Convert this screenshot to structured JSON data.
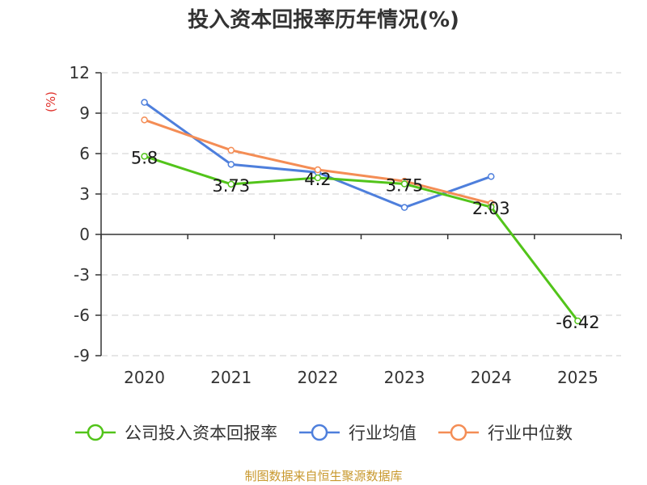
{
  "chart_data": {
    "type": "line",
    "title": "投入资本回报率历年情况(%)",
    "ylabel": "(%)",
    "categories": [
      "2020",
      "2021",
      "2022",
      "2023",
      "2024",
      "2025"
    ],
    "ylim": [
      -9,
      12
    ],
    "yticks": [
      12,
      9,
      6,
      3,
      0,
      -3,
      -6,
      -9
    ],
    "grid": true,
    "legend_position": "bottom",
    "series": [
      {
        "name": "公司投入资本回报率",
        "color": "#52c41a",
        "values": [
          5.8,
          3.73,
          4.2,
          3.75,
          2.03,
          -6.42
        ],
        "labels": [
          "5.8",
          "3.73",
          "4.2",
          "3.75",
          "2.03",
          "-6.42"
        ]
      },
      {
        "name": "行业均值",
        "color": "#4e7fdc",
        "values": [
          9.8,
          5.2,
          4.6,
          2.0,
          4.3,
          null
        ]
      },
      {
        "name": "行业中位数",
        "color": "#f48d55",
        "values": [
          8.5,
          6.25,
          4.8,
          3.95,
          2.3,
          null
        ]
      }
    ]
  },
  "source": "制图数据来自恒生聚源数据库"
}
